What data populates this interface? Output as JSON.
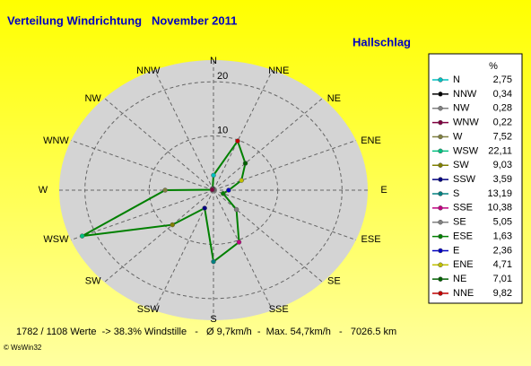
{
  "chart_data": {
    "type": "radar",
    "title": "Verteilung Windrichtung   November 2011",
    "subtitle": "Hallschlag",
    "legend_header": "%",
    "categories": [
      "N",
      "NNW",
      "NW",
      "WNW",
      "W",
      "WSW",
      "SW",
      "SSW",
      "S",
      "SSE",
      "SE",
      "ESE",
      "E",
      "ENE",
      "NE",
      "NNE"
    ],
    "values": [
      2.75,
      0.34,
      0.28,
      0.22,
      7.52,
      22.11,
      9.03,
      3.59,
      13.19,
      10.38,
      5.05,
      1.63,
      2.36,
      4.71,
      7.01,
      9.82
    ],
    "value_labels": [
      "2,75",
      "0,34",
      "0,28",
      "0,22",
      "7,52",
      "22,11",
      "9,03",
      "3,59",
      "13,19",
      "10,38",
      "5,05",
      "1,63",
      "2,36",
      "4,71",
      "7,01",
      "9,82"
    ],
    "marker_colors": [
      "#00c0c0",
      "#000000",
      "#808080",
      "#800040",
      "#808040",
      "#00c080",
      "#808000",
      "#000080",
      "#008080",
      "#c00080",
      "#808080",
      "#008000",
      "#0000c0",
      "#c0c000",
      "#006000",
      "#c00000"
    ],
    "line_color": "#008000",
    "rlim": [
      0,
      24
    ],
    "rticks": [
      10,
      20
    ],
    "grid": true,
    "footer": "1782 / 1108 Werte  -> 38.3% Windstille   -   Ø 9,7km/h  -  Max. 54,7km/h   -   7026.5 km",
    "credit": "© WsWin32"
  }
}
